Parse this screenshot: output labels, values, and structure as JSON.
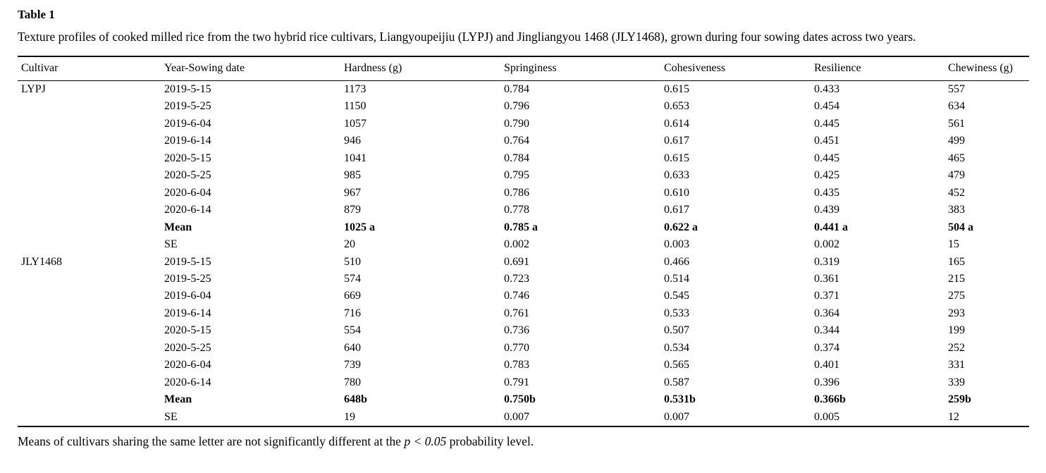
{
  "page": {
    "title": "Table 1",
    "caption": "Texture profiles of cooked milled rice from the two hybrid rice cultivars, Liangyoupeijiu (LYPJ) and Jingliangyou 1468 (JLY1468), grown during four sowing dates across two years.",
    "footnote": {
      "text_before": "Means of cultivars sharing the same letter are not significantly different at the ",
      "p_symbol": "p",
      "operator": " < ",
      "threshold": "0.05",
      "text_after": " probability level."
    }
  },
  "colors": {
    "text": "#000000",
    "rule": "#000000",
    "background": "#ffffff"
  },
  "table": {
    "columns": [
      "Cultivar",
      "Year-Sowing date",
      "Hardness (g)",
      "Springiness",
      "Cohesiveness",
      "Resilience",
      "Chewiness (g)"
    ],
    "rows": [
      {
        "cells": [
          "LYPJ",
          "2019-5-15",
          "1173",
          "0.784",
          "0.615",
          "0.433",
          "557"
        ],
        "bold": false
      },
      {
        "cells": [
          "",
          "2019-5-25",
          "1150",
          "0.796",
          "0.653",
          "0.454",
          "634"
        ],
        "bold": false
      },
      {
        "cells": [
          "",
          "2019-6-04",
          "1057",
          "0.790",
          "0.614",
          "0.445",
          "561"
        ],
        "bold": false
      },
      {
        "cells": [
          "",
          "2019-6-14",
          "946",
          "0.764",
          "0.617",
          "0.451",
          "499"
        ],
        "bold": false
      },
      {
        "cells": [
          "",
          "2020-5-15",
          "1041",
          "0.784",
          "0.615",
          "0.445",
          "465"
        ],
        "bold": false
      },
      {
        "cells": [
          "",
          "2020-5-25",
          "985",
          "0.795",
          "0.633",
          "0.425",
          "479"
        ],
        "bold": false
      },
      {
        "cells": [
          "",
          "2020-6-04",
          "967",
          "0.786",
          "0.610",
          "0.435",
          "452"
        ],
        "bold": false
      },
      {
        "cells": [
          "",
          "2020-6-14",
          "879",
          "0.778",
          "0.617",
          "0.439",
          "383"
        ],
        "bold": false
      },
      {
        "cells": [
          "",
          "Mean",
          "1025 a",
          "0.785 a",
          "0.622 a",
          "0.441 a",
          "504 a"
        ],
        "bold": true
      },
      {
        "cells": [
          "",
          "SE",
          "20",
          "0.002",
          "0.003",
          "0.002",
          "15"
        ],
        "bold": false
      },
      {
        "cells": [
          "JLY1468",
          "2019-5-15",
          "510",
          "0.691",
          "0.466",
          "0.319",
          "165"
        ],
        "bold": false
      },
      {
        "cells": [
          "",
          "2019-5-25",
          "574",
          "0.723",
          "0.514",
          "0.361",
          "215"
        ],
        "bold": false
      },
      {
        "cells": [
          "",
          "2019-6-04",
          "669",
          "0.746",
          "0.545",
          "0.371",
          "275"
        ],
        "bold": false
      },
      {
        "cells": [
          "",
          "2019-6-14",
          "716",
          "0.761",
          "0.533",
          "0.364",
          "293"
        ],
        "bold": false
      },
      {
        "cells": [
          "",
          "2020-5-15",
          "554",
          "0.736",
          "0.507",
          "0.344",
          "199"
        ],
        "bold": false
      },
      {
        "cells": [
          "",
          "2020-5-25",
          "640",
          "0.770",
          "0.534",
          "0.374",
          "252"
        ],
        "bold": false
      },
      {
        "cells": [
          "",
          "2020-6-04",
          "739",
          "0.783",
          "0.565",
          "0.401",
          "331"
        ],
        "bold": false
      },
      {
        "cells": [
          "",
          "2020-6-14",
          "780",
          "0.791",
          "0.587",
          "0.396",
          "339"
        ],
        "bold": false
      },
      {
        "cells": [
          "",
          "Mean",
          "648b",
          "0.750b",
          "0.531b",
          "0.366b",
          "259b"
        ],
        "bold": true
      },
      {
        "cells": [
          "",
          "SE",
          "19",
          "0.007",
          "0.007",
          "0.005",
          "12"
        ],
        "bold": false
      }
    ]
  }
}
